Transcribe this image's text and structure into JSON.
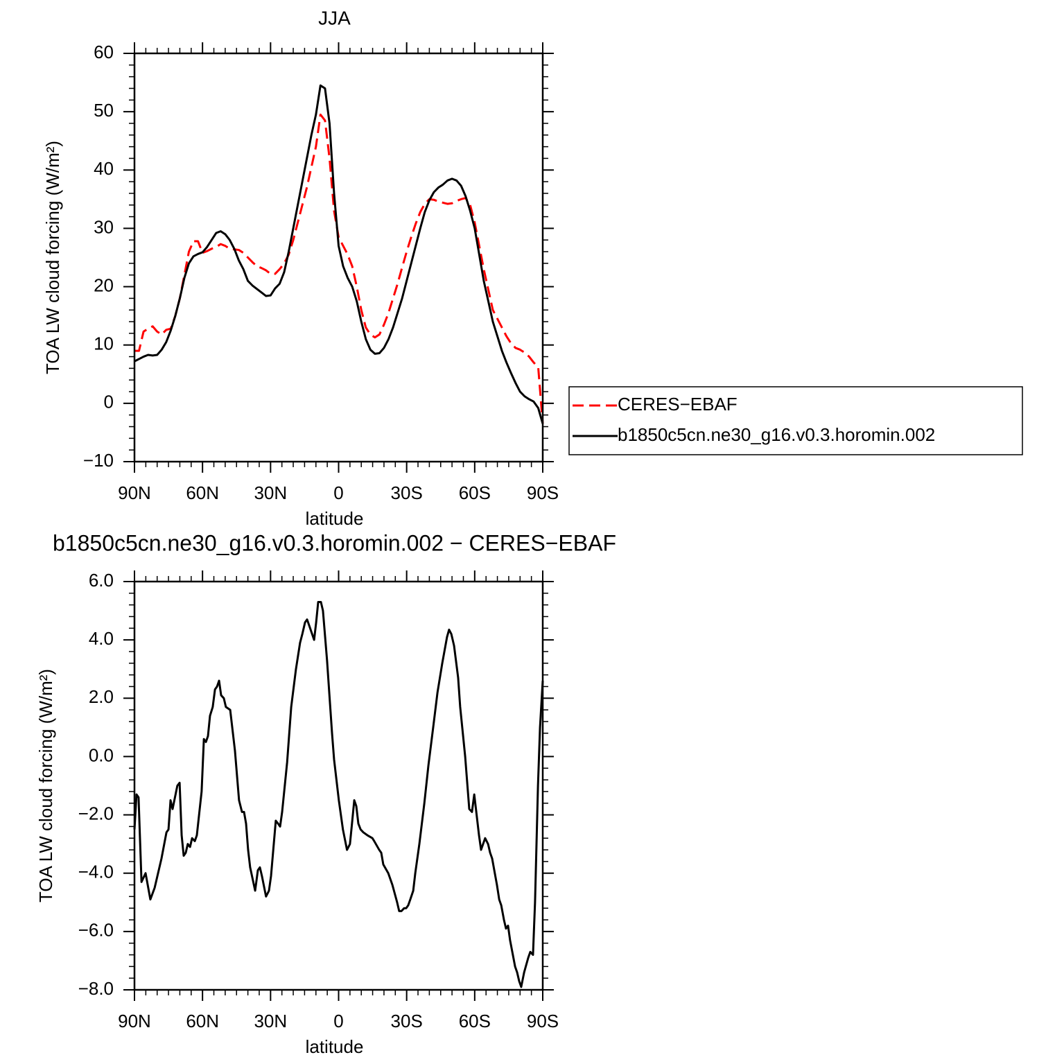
{
  "chart_data": [
    {
      "type": "line",
      "title": "JJA",
      "x_label": "latitude",
      "y_label": "TOA LW cloud forcing (W/m²)",
      "x": [
        90,
        88,
        86,
        84,
        82,
        80,
        78,
        76,
        74,
        72,
        70,
        68,
        66,
        64,
        62,
        60,
        58,
        56,
        54,
        52,
        50,
        48,
        46,
        44,
        42,
        40,
        38,
        36,
        34,
        32,
        30,
        28,
        26,
        24,
        22,
        20,
        18,
        16,
        14,
        12,
        10,
        8,
        6,
        4,
        2,
        0,
        -2,
        -4,
        -6,
        -8,
        -10,
        -12,
        -14,
        -16,
        -18,
        -20,
        -22,
        -24,
        -26,
        -28,
        -30,
        -32,
        -34,
        -36,
        -38,
        -40,
        -42,
        -44,
        -46,
        -48,
        -50,
        -52,
        -54,
        -56,
        -58,
        -60,
        -62,
        -64,
        -66,
        -68,
        -70,
        -72,
        -74,
        -76,
        -78,
        -80,
        -82,
        -84,
        -86,
        -88,
        -90
      ],
      "xlim": [
        90,
        -90
      ],
      "xticks": [
        {
          "value": 90,
          "label": "90N"
        },
        {
          "value": 60,
          "label": "60N"
        },
        {
          "value": 30,
          "label": "30N"
        },
        0,
        {
          "value": -30,
          "label": "30S"
        },
        {
          "value": -60,
          "label": "60S"
        },
        {
          "value": -90,
          "label": "90S"
        }
      ],
      "ylim": [
        -10,
        60
      ],
      "yticks": [
        {
          "value": -10,
          "label": "−10"
        },
        0,
        10,
        20,
        30,
        40,
        50,
        60
      ],
      "legend": "right",
      "series": [
        {
          "name": "CERES−EBAF",
          "color": "#ff0000",
          "line_style": "dashed",
          "values": [
            9,
            9,
            12.3,
            12.8,
            13.2,
            12.3,
            11.8,
            12.6,
            12.8,
            15,
            18,
            22,
            26,
            27.8,
            27.8,
            25.8,
            26.1,
            26.5,
            26.8,
            27.3,
            27,
            26.5,
            26.4,
            26.3,
            25.8,
            25,
            24.2,
            23.5,
            23.2,
            22.8,
            22.2,
            22.2,
            23,
            24,
            25.5,
            28,
            31,
            34,
            37,
            40.5,
            44,
            49.5,
            48.5,
            42,
            33,
            28.5,
            27,
            25.5,
            23.5,
            20,
            16,
            13,
            11.8,
            11.3,
            11.8,
            13.5,
            15.5,
            18,
            20.5,
            23.3,
            26,
            28.5,
            30.8,
            32.8,
            34.2,
            35,
            34.9,
            34.6,
            34.4,
            34.2,
            34.3,
            34.7,
            35,
            35.2,
            34,
            31,
            27,
            23,
            19.5,
            16,
            14.5,
            13,
            11.5,
            10.3,
            9.5,
            9.2,
            8.7,
            8,
            7,
            6.2,
            -3.5
          ]
        },
        {
          "name": "b1850c5cn.ne30_g16.v0.3.horomin.002",
          "color": "#000000",
          "line_style": "solid",
          "values": [
            7.2,
            7.6,
            8.0,
            8.3,
            8.2,
            8.3,
            9.2,
            10.5,
            12.5,
            15,
            18,
            21.5,
            24,
            25.2,
            25.6,
            25.9,
            26.8,
            28,
            29.2,
            29.5,
            29,
            28,
            26.5,
            24.5,
            23,
            21,
            20.2,
            19.6,
            19,
            18.4,
            18.5,
            19.7,
            20.5,
            22.5,
            26,
            30,
            34,
            38,
            42,
            46,
            49.5,
            54.5,
            54,
            48,
            36,
            27,
            23.5,
            21.5,
            20,
            17.5,
            14,
            11,
            9.2,
            8.5,
            8.6,
            9.5,
            11,
            13,
            15.5,
            18,
            21,
            24,
            27,
            30,
            32.8,
            34.8,
            36.2,
            37,
            37.5,
            38.2,
            38.5,
            38.2,
            37.3,
            35.5,
            33,
            30,
            25.5,
            21,
            17.5,
            14,
            11.5,
            9,
            7,
            5.2,
            3.5,
            2,
            1.2,
            0.7,
            0.3,
            -0.8,
            -3.5
          ]
        }
      ]
    },
    {
      "type": "line",
      "title": "b1850c5cn.ne30_g16.v0.3.horomin.002 − CERES−EBAF",
      "x_label": "latitude",
      "y_label": "TOA LW cloud forcing (W/m²)",
      "x": [
        90,
        89.1,
        88.2,
        86.9,
        85.1,
        83,
        81.1,
        78.1,
        75.9,
        75,
        74.1,
        73.2,
        71.1,
        70.1,
        69.2,
        68.3,
        67.4,
        66.5,
        65.5,
        64.6,
        63.4,
        62.5,
        60.4,
        59.4,
        58.5,
        57.6,
        56.7,
        55.5,
        54.5,
        53.6,
        52.7,
        51.8,
        50.6,
        49.7,
        47.8,
        45.7,
        43.9,
        42.6,
        41.7,
        40.8,
        39.9,
        39,
        36.8,
        35.6,
        34.7,
        33.8,
        32,
        30.7,
        29.8,
        27.7,
        26.7,
        25.8,
        24.9,
        22.7,
        20.9,
        18.8,
        17,
        16,
        14.8,
        13.9,
        13,
        10.8,
        9.9,
        9,
        7.8,
        6.9,
        5.1,
        2.9,
        2,
        -0.1,
        -1.9,
        -3.7,
        -5,
        -5.9,
        -6.9,
        -7.8,
        -8.7,
        -9.7,
        -10.9,
        -12.7,
        -14.9,
        -15.7,
        -17.9,
        -18.8,
        -19.7,
        -21.9,
        -23.7,
        -25.8,
        -26.7,
        -27.7,
        -28.9,
        -29.8,
        -30.7,
        -31.6,
        -32.9,
        -33.8,
        -35.6,
        -37.8,
        -39.6,
        -41.7,
        -43.6,
        -45.7,
        -47.8,
        -48.7,
        -49.7,
        -50.9,
        -52.7,
        -53.6,
        -55.8,
        -57.6,
        -58.8,
        -59.8,
        -61.9,
        -62.8,
        -63.7,
        -64.6,
        -65.9,
        -66.8,
        -67.7,
        -69.8,
        -70.8,
        -71.7,
        -72.9,
        -73.8,
        -74.7,
        -75.6,
        -77.8,
        -78.7,
        -79.6,
        -80.5,
        -81.8,
        -83.6,
        -84.5,
        -85.7,
        -86.6,
        -87.9,
        -88.8,
        -90
      ],
      "xlim": [
        90,
        -90
      ],
      "xticks": [
        {
          "value": 90,
          "label": "90N"
        },
        {
          "value": 60,
          "label": "60N"
        },
        {
          "value": 30,
          "label": "30N"
        },
        0,
        {
          "value": -30,
          "label": "30S"
        },
        {
          "value": -60,
          "label": "60S"
        },
        {
          "value": -90,
          "label": "90S"
        }
      ],
      "ylim": [
        -8,
        6
      ],
      "yticks": [
        {
          "value": -8,
          "label": "−8.0"
        },
        {
          "value": -6,
          "label": "−6.0"
        },
        {
          "value": -4,
          "label": "−4.0"
        },
        {
          "value": -2,
          "label": "−2.0"
        },
        {
          "value": 0,
          "label": "0.0"
        },
        {
          "value": 2,
          "label": "2.0"
        },
        {
          "value": 4,
          "label": "4.0"
        },
        {
          "value": 6,
          "label": "6.0"
        }
      ],
      "series": [
        {
          "color": "#000000",
          "line_style": "solid",
          "values": [
            -2.5,
            -1.3,
            -1.4,
            -4.3,
            -4.0,
            -4.9,
            -4.5,
            -3.5,
            -2.6,
            -2.5,
            -1.5,
            -1.8,
            -1.0,
            -0.9,
            -2.7,
            -3.4,
            -3.3,
            -3.0,
            -3.1,
            -2.8,
            -2.9,
            -2.7,
            -1.2,
            0.6,
            0.5,
            0.7,
            1.4,
            1.7,
            2.3,
            2.4,
            2.6,
            2.1,
            2.0,
            1.7,
            1.6,
            0.2,
            -1.5,
            -1.9,
            -1.9,
            -2.3,
            -3.2,
            -3.8,
            -4.6,
            -3.9,
            -3.8,
            -4.1,
            -4.8,
            -4.6,
            -4.1,
            -2.2,
            -2.3,
            -2.4,
            -1.9,
            -0.2,
            1.7,
            3.0,
            3.9,
            4.2,
            4.6,
            4.7,
            4.5,
            4.0,
            4.6,
            5.3,
            5.3,
            5.0,
            3.3,
            0.8,
            -0.1,
            -1.5,
            -2.5,
            -3.2,
            -3.0,
            -2.3,
            -1.5,
            -1.7,
            -2.3,
            -2.5,
            -2.6,
            -2.7,
            -2.8,
            -2.9,
            -3.2,
            -3.3,
            -3.7,
            -4.0,
            -4.4,
            -5.0,
            -5.3,
            -5.3,
            -5.2,
            -5.2,
            -5.1,
            -4.9,
            -4.6,
            -4.0,
            -3.0,
            -1.6,
            -0.3,
            1.0,
            2.2,
            3.2,
            4.1,
            4.35,
            4.2,
            3.8,
            2.7,
            1.7,
            0,
            -1.8,
            -1.9,
            -1.3,
            -2.7,
            -3.2,
            -3.0,
            -2.8,
            -3.0,
            -3.3,
            -3.5,
            -4.4,
            -4.9,
            -5.1,
            -5.6,
            -5.9,
            -5.8,
            -6.3,
            -7.2,
            -7.4,
            -7.7,
            -7.9,
            -7.4,
            -6.9,
            -6.7,
            -6.8,
            -5.0,
            -1,
            1.0,
            2.6
          ]
        }
      ]
    }
  ]
}
